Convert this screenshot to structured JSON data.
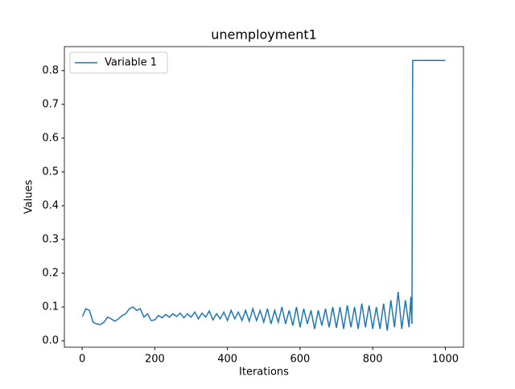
{
  "chart_data": {
    "type": "line",
    "title": "unemployment1",
    "xlabel": "Iterations",
    "ylabel": "Values",
    "x": [
      1,
      10,
      20,
      30,
      40,
      50,
      60,
      70,
      80,
      90,
      100,
      110,
      120,
      130,
      140,
      150,
      160,
      170,
      180,
      190,
      200,
      210,
      220,
      230,
      240,
      250,
      260,
      270,
      280,
      290,
      300,
      310,
      320,
      330,
      340,
      350,
      360,
      370,
      380,
      390,
      400,
      410,
      420,
      430,
      440,
      450,
      460,
      470,
      480,
      490,
      500,
      510,
      520,
      530,
      540,
      550,
      560,
      570,
      580,
      590,
      600,
      610,
      620,
      630,
      640,
      650,
      660,
      670,
      680,
      690,
      700,
      710,
      720,
      730,
      740,
      750,
      760,
      770,
      780,
      790,
      800,
      810,
      820,
      830,
      840,
      850,
      860,
      870,
      880,
      890,
      900,
      905,
      908,
      910,
      920,
      930,
      940,
      950,
      960,
      970,
      980,
      990,
      1000
    ],
    "series": [
      {
        "name": "Variable 1",
        "color": "#1f77b4",
        "values": [
          0.072,
          0.095,
          0.09,
          0.055,
          0.05,
          0.048,
          0.055,
          0.07,
          0.065,
          0.058,
          0.065,
          0.075,
          0.08,
          0.095,
          0.1,
          0.09,
          0.095,
          0.07,
          0.08,
          0.06,
          0.062,
          0.075,
          0.068,
          0.078,
          0.07,
          0.08,
          0.072,
          0.082,
          0.068,
          0.08,
          0.07,
          0.085,
          0.065,
          0.082,
          0.07,
          0.088,
          0.062,
          0.08,
          0.065,
          0.085,
          0.06,
          0.09,
          0.065,
          0.085,
          0.06,
          0.09,
          0.058,
          0.095,
          0.06,
          0.09,
          0.055,
          0.095,
          0.05,
          0.09,
          0.055,
          0.1,
          0.05,
          0.09,
          0.045,
          0.1,
          0.04,
          0.095,
          0.05,
          0.09,
          0.035,
          0.09,
          0.045,
          0.095,
          0.04,
          0.1,
          0.038,
          0.1,
          0.035,
          0.105,
          0.04,
          0.1,
          0.035,
          0.11,
          0.04,
          0.105,
          0.035,
          0.1,
          0.035,
          0.11,
          0.03,
          0.12,
          0.04,
          0.145,
          0.035,
          0.12,
          0.04,
          0.13,
          0.05,
          0.83,
          0.83,
          0.83,
          0.83,
          0.83,
          0.83,
          0.83,
          0.83,
          0.83,
          0.83
        ]
      }
    ],
    "xlim": [
      -48.95,
      1049.95
    ],
    "ylim": [
      -0.019,
      0.871
    ],
    "xticks": [
      0,
      200,
      400,
      600,
      800,
      1000
    ],
    "yticks": [
      {
        "value": 0,
        "label": "0.0"
      },
      0.1,
      0.2,
      0.3,
      0.4,
      0.5,
      0.6,
      0.7,
      0.8
    ],
    "legend": "upper left"
  }
}
